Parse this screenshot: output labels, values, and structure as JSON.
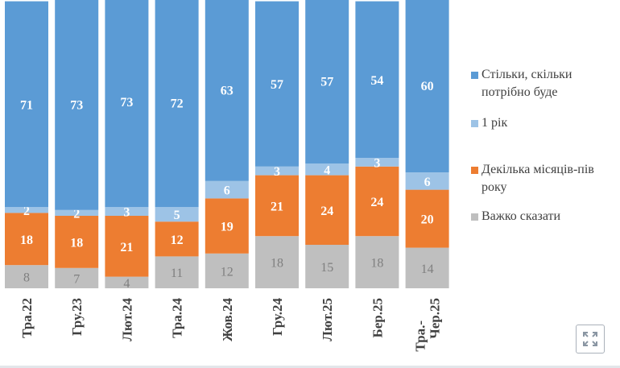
{
  "chart_data": {
    "type": "bar",
    "stacked": true,
    "title": "",
    "xlabel": "",
    "ylabel": "",
    "ylim": [
      0,
      100
    ],
    "grid": false,
    "legend_position": "right",
    "categories": [
      "Тра.22",
      "Гру.23",
      "Лют.24",
      "Тра.24",
      "Жов.24",
      "Гру.24",
      "Лют.25",
      "Бер.25",
      "Тра.-Чер.25"
    ],
    "series": [
      {
        "name": "Важко сказати",
        "color": "#bfbfbf",
        "label_color": "#7f7f7f",
        "values": [
          8,
          7,
          4,
          11,
          12,
          18,
          15,
          18,
          14
        ]
      },
      {
        "name": "Декілька місяців-пів року",
        "color": "#ed7d31",
        "label_color": "#ffffff",
        "values": [
          18,
          18,
          21,
          12,
          19,
          21,
          24,
          24,
          20
        ]
      },
      {
        "name": "1 рік",
        "color": "#9dc3e6",
        "label_color": "#ffffff",
        "values": [
          2,
          2,
          3,
          5,
          6,
          3,
          4,
          3,
          6
        ]
      },
      {
        "name": "Стільки, скільки потрібно буде",
        "color": "#5b9bd5",
        "label_color": "#ffffff",
        "values": [
          71,
          73,
          73,
          72,
          63,
          57,
          57,
          54,
          60
        ]
      }
    ]
  },
  "legend": [
    {
      "label_line1": "Стільки, скільки",
      "label_line2": "потрібно буде",
      "color": "#5b9bd5"
    },
    {
      "label_line1": "1 рік",
      "label_line2": "",
      "color": "#9dc3e6"
    },
    {
      "label_line1": "Декілька місяців-пів",
      "label_line2": "року",
      "color": "#ed7d31"
    },
    {
      "label_line1": "Важко сказати",
      "label_line2": "",
      "color": "#bfbfbf"
    }
  ],
  "expand_icon": "expand-arrows-icon"
}
